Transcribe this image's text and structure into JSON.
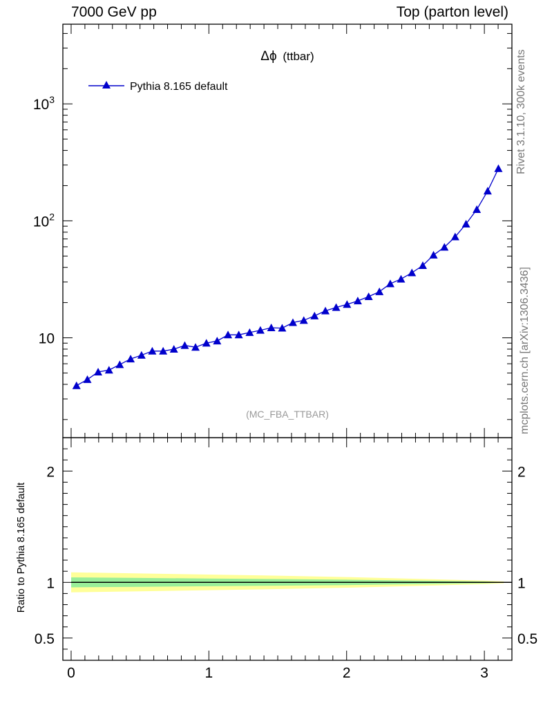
{
  "header": {
    "left": "7000 GeV pp",
    "right": "Top (parton level)"
  },
  "side_labels": {
    "rivet": "Rivet 3.1.10,  300k events",
    "mcplots": "mcplots.cern.ch [arXiv:1306.3436]"
  },
  "colors": {
    "series": "#0000cc",
    "band_inner": "#99ee99",
    "band_outer": "#ffff99",
    "frame": "#000000",
    "watermark": "#999999"
  },
  "chart_data": [
    {
      "type": "line",
      "title": "Δϕ (ttbar)",
      "title_symbol": "Δϕ",
      "title_suffix": "(ttbar)",
      "watermark": "(MC_FBA_TTBAR)",
      "xlabel": "",
      "ylabel": "",
      "yscale": "log",
      "xlim": [
        -0.06,
        3.2
      ],
      "ylim": [
        1.4,
        4800
      ],
      "y_tick_labels": [
        {
          "value": 10,
          "base": "10",
          "exp": ""
        },
        {
          "value": 100,
          "base": "10",
          "exp": "2"
        },
        {
          "value": 1000,
          "base": "10",
          "exp": "3"
        }
      ],
      "legend": {
        "label": "Pythia 8.165 default",
        "position": "top-left"
      },
      "series": [
        {
          "name": "Pythia 8.165 default",
          "marker": "triangle-up",
          "x": [
            0.039,
            0.118,
            0.196,
            0.275,
            0.353,
            0.432,
            0.511,
            0.589,
            0.668,
            0.746,
            0.825,
            0.903,
            0.982,
            1.06,
            1.139,
            1.217,
            1.296,
            1.374,
            1.453,
            1.532,
            1.61,
            1.689,
            1.767,
            1.846,
            1.924,
            2.003,
            2.081,
            2.16,
            2.238,
            2.317,
            2.395,
            2.474,
            2.553,
            2.631,
            2.71,
            2.788,
            2.867,
            2.945,
            3.024,
            3.102
          ],
          "values": [
            3.9,
            4.4,
            5.1,
            5.3,
            5.9,
            6.6,
            7.1,
            7.7,
            7.7,
            8.0,
            8.6,
            8.3,
            9.0,
            9.4,
            10.6,
            10.6,
            11.1,
            11.6,
            12.2,
            12.1,
            13.5,
            14.1,
            15.4,
            17.0,
            18.2,
            19.3,
            20.7,
            22.5,
            24.8,
            29.0,
            31.8,
            36.0,
            41.5,
            51.0,
            59.5,
            73.0,
            94.0,
            125.0,
            180.0,
            280.0
          ]
        }
      ]
    },
    {
      "type": "area",
      "title": "",
      "xlabel": "",
      "ylabel": "Ratio to Pythia 8.165 default",
      "xlim": [
        -0.06,
        3.2
      ],
      "ylim": [
        0.3,
        2.3
      ],
      "x_tick_labels": [
        "0",
        "1",
        "2",
        "3"
      ],
      "y_tick_labels": [
        "0.5",
        "1",
        "2"
      ],
      "series": [
        {
          "name": "Pythia 8.165 default",
          "x": [
            0.0,
            0.5,
            1.0,
            1.5,
            2.0,
            2.5,
            3.0,
            3.141
          ],
          "values": [
            1.0,
            1.0,
            1.0,
            1.0,
            1.0,
            1.0,
            1.0,
            1.0
          ],
          "band_inner": [
            0.045,
            0.04,
            0.035,
            0.03,
            0.024,
            0.016,
            0.008,
            0.004
          ],
          "band_outer": [
            0.09,
            0.08,
            0.07,
            0.06,
            0.048,
            0.032,
            0.016,
            0.008
          ]
        }
      ]
    }
  ]
}
